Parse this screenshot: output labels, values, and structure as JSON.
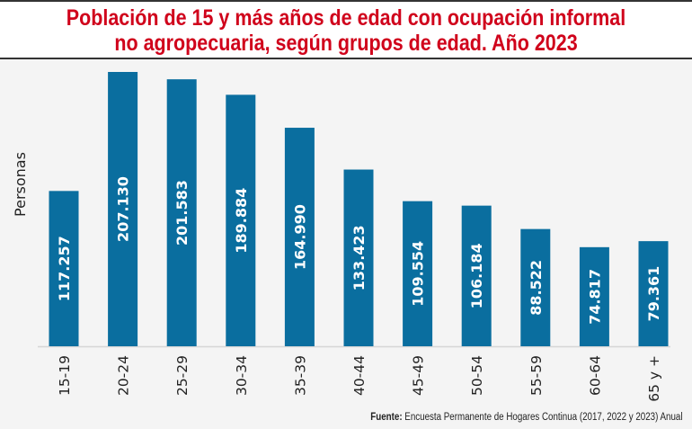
{
  "chart_data": {
    "type": "bar",
    "title_lines": [
      "Población de 15 y más años de edad con ocupación informal",
      "no agropecuaria, según grupos de edad. Año 2023"
    ],
    "ylabel": "Personas",
    "xlabel": "",
    "categories": [
      "15-19",
      "20-24",
      "25-29",
      "30-34",
      "35-39",
      "40-44",
      "45-49",
      "50-54",
      "55-59",
      "60-64",
      "65 y +"
    ],
    "values": [
      117257,
      207130,
      201583,
      189884,
      164990,
      133423,
      109554,
      106184,
      88522,
      74817,
      79361
    ],
    "data_labels": [
      "117.257",
      "207.130",
      "201.583",
      "189.884",
      "164.990",
      "133.423",
      "109.554",
      "106.184",
      "88.522",
      "74.817",
      "79.361"
    ],
    "ylim": [
      0,
      207130
    ],
    "grid": false,
    "bar_color": "#0a6e9f",
    "label_color": "#ffffff"
  },
  "source": {
    "label": "Fuente:",
    "text": " Encuesta Permanente de Hogares Continua (2017, 2022 y 2023) Anual"
  }
}
